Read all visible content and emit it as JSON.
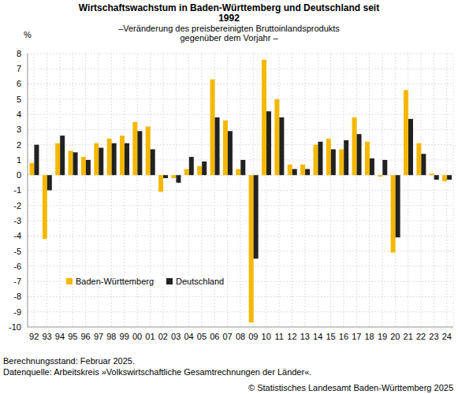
{
  "chart_data": {
    "type": "bar",
    "title": "Wirtschaftswachstum in Baden-Württemberg und Deutschland seit 1992",
    "subtitle": "–Veränderung des preisbereinigten Bruttoinlandsprodukts gegenüber dem Vorjahr –",
    "y_label": "%",
    "notes": [
      "Berechnungsstand: Februar 2025.",
      "Datenquelle: Arbeitskreis »Volkswirtschaftliche Gesamtrechnungen der Länder«."
    ],
    "source": "© Statistisches Landesamt Baden-Württemberg 2025",
    "categories": [
      "92",
      "93",
      "94",
      "95",
      "96",
      "97",
      "98",
      "99",
      "00",
      "01",
      "02",
      "03",
      "04",
      "05",
      "06",
      "07",
      "08",
      "09",
      "10",
      "11",
      "12",
      "13",
      "14",
      "15",
      "16",
      "17",
      "18",
      "19",
      "20",
      "21",
      "22",
      "23",
      "24"
    ],
    "series": [
      {
        "name": "Baden-Württemberg",
        "color": "#f5b800",
        "values": [
          0.8,
          -4.2,
          2.1,
          1.6,
          1.2,
          2.1,
          2.4,
          2.6,
          3.5,
          3.2,
          -1.1,
          -0.2,
          0.4,
          0.6,
          6.3,
          3.6,
          0.4,
          -9.7,
          7.6,
          5.0,
          0.7,
          0.7,
          2.0,
          2.4,
          1.7,
          3.8,
          2.2,
          -0.1,
          -5.1,
          5.6,
          2.1,
          0.1,
          -0.4
        ]
      },
      {
        "name": "Deutschland",
        "color": "#222222",
        "values": [
          2.0,
          -1.0,
          2.6,
          1.5,
          1.0,
          1.8,
          2.1,
          2.1,
          2.9,
          1.7,
          -0.2,
          -0.5,
          1.2,
          0.9,
          3.8,
          2.9,
          1.0,
          -5.5,
          4.2,
          3.8,
          0.4,
          0.4,
          2.2,
          1.7,
          2.3,
          2.7,
          1.1,
          1.0,
          -4.1,
          3.7,
          1.4,
          -0.3,
          -0.3
        ]
      }
    ],
    "ylim": [
      -10,
      8
    ],
    "yticks": [
      -10,
      -9,
      -8,
      -7,
      -6,
      -5,
      -4,
      -3,
      -2,
      -1,
      0,
      1,
      2,
      3,
      4,
      5,
      6,
      7,
      8
    ],
    "grid": true,
    "legend": "lower left"
  }
}
